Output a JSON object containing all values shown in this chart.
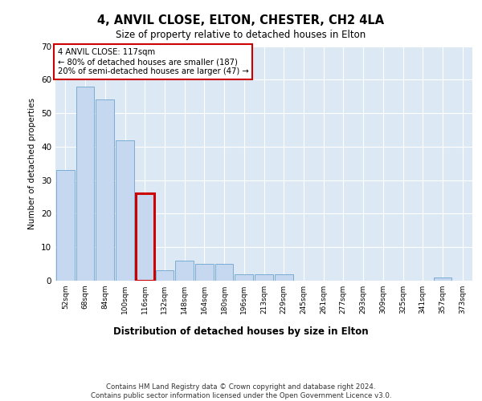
{
  "title1": "4, ANVIL CLOSE, ELTON, CHESTER, CH2 4LA",
  "title2": "Size of property relative to detached houses in Elton",
  "xlabel": "Distribution of detached houses by size in Elton",
  "ylabel": "Number of detached properties",
  "categories": [
    "52sqm",
    "68sqm",
    "84sqm",
    "100sqm",
    "116sqm",
    "132sqm",
    "148sqm",
    "164sqm",
    "180sqm",
    "196sqm",
    "213sqm",
    "229sqm",
    "245sqm",
    "261sqm",
    "277sqm",
    "293sqm",
    "309sqm",
    "325sqm",
    "341sqm",
    "357sqm",
    "373sqm"
  ],
  "values": [
    33,
    58,
    54,
    42,
    26,
    3,
    6,
    5,
    5,
    2,
    2,
    2,
    0,
    0,
    0,
    0,
    0,
    0,
    0,
    1,
    0
  ],
  "bar_color": "#c5d8f0",
  "bar_edge_color": "#7aadd4",
  "highlight_bar_index": 4,
  "highlight_bar_edge_color": "#cc0000",
  "annotation_title": "4 ANVIL CLOSE: 117sqm",
  "annotation_line1": "← 80% of detached houses are smaller (187)",
  "annotation_line2": "20% of semi-detached houses are larger (47) →",
  "annotation_box_color": "#ffffff",
  "annotation_box_edge_color": "#cc0000",
  "footer": "Contains HM Land Registry data © Crown copyright and database right 2024.\nContains public sector information licensed under the Open Government Licence v3.0.",
  "ylim": [
    0,
    70
  ],
  "yticks": [
    0,
    10,
    20,
    30,
    40,
    50,
    60,
    70
  ],
  "plot_bg_color": "#dce9f5"
}
